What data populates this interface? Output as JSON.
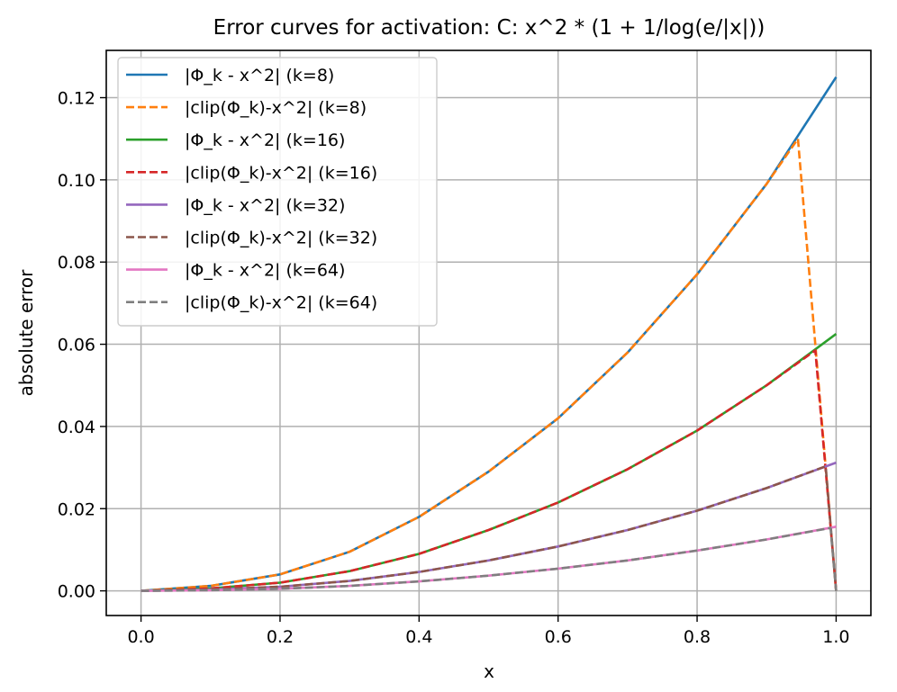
{
  "chart_data": {
    "type": "line",
    "title": "Error curves for activation: C: x^2 * (1 + 1/log(e/|x|))",
    "xlabel": "x",
    "ylabel": "absolute error",
    "xlim": [
      -0.05,
      1.05
    ],
    "ylim": [
      -0.006,
      0.1315
    ],
    "xticks": [
      0.0,
      0.2,
      0.4,
      0.6,
      0.8,
      1.0
    ],
    "yticks": [
      0.0,
      0.02,
      0.04,
      0.06,
      0.08,
      0.1,
      0.12
    ],
    "xtick_labels": [
      "0.0",
      "0.2",
      "0.4",
      "0.6",
      "0.8",
      "1.0"
    ],
    "ytick_labels": [
      "0.00",
      "0.02",
      "0.04",
      "0.06",
      "0.08",
      "0.10",
      "0.12"
    ],
    "grid": true,
    "legend_position": "upper-left",
    "series": [
      {
        "name": "|Φ_k - x^2| (k=8)",
        "color": "#1f77b4",
        "style": "solid",
        "k": 8,
        "clipped": false,
        "x": [
          0.0,
          0.1,
          0.2,
          0.3,
          0.4,
          0.5,
          0.6,
          0.7,
          0.8,
          0.9,
          1.0
        ],
        "y": [
          0.0,
          0.0012,
          0.004,
          0.0095,
          0.018,
          0.029,
          0.042,
          0.058,
          0.077,
          0.099,
          0.125
        ]
      },
      {
        "name": "|clip(Φ_k)-x^2| (k=8)",
        "color": "#ff7f0e",
        "style": "dashed",
        "k": 8,
        "clipped": true,
        "x": [
          0.0,
          0.1,
          0.2,
          0.3,
          0.4,
          0.5,
          0.6,
          0.7,
          0.8,
          0.9,
          0.945,
          1.0
        ],
        "y": [
          0.0,
          0.0012,
          0.004,
          0.0095,
          0.018,
          0.029,
          0.042,
          0.058,
          0.077,
          0.099,
          0.11,
          0.0
        ]
      },
      {
        "name": "|Φ_k - x^2| (k=16)",
        "color": "#2ca02c",
        "style": "solid",
        "k": 16,
        "clipped": false,
        "x": [
          0.0,
          0.1,
          0.2,
          0.3,
          0.4,
          0.5,
          0.6,
          0.7,
          0.8,
          0.9,
          1.0
        ],
        "y": [
          0.0,
          0.0006,
          0.002,
          0.0048,
          0.009,
          0.0148,
          0.0215,
          0.0296,
          0.039,
          0.05,
          0.0625
        ]
      },
      {
        "name": "|clip(Φ_k)-x^2| (k=16)",
        "color": "#d62728",
        "style": "dashed",
        "k": 16,
        "clipped": true,
        "x": [
          0.0,
          0.1,
          0.2,
          0.3,
          0.4,
          0.5,
          0.6,
          0.7,
          0.8,
          0.9,
          0.97,
          1.0
        ],
        "y": [
          0.0,
          0.0006,
          0.002,
          0.0048,
          0.009,
          0.0148,
          0.0215,
          0.0296,
          0.039,
          0.05,
          0.0585,
          0.0
        ]
      },
      {
        "name": "|Φ_k - x^2| (k=32)",
        "color": "#9467bd",
        "style": "solid",
        "k": 32,
        "clipped": false,
        "x": [
          0.0,
          0.1,
          0.2,
          0.3,
          0.4,
          0.5,
          0.6,
          0.7,
          0.8,
          0.9,
          1.0
        ],
        "y": [
          0.0,
          0.0003,
          0.001,
          0.0024,
          0.0046,
          0.0074,
          0.0108,
          0.0148,
          0.0195,
          0.025,
          0.0312
        ]
      },
      {
        "name": "|clip(Φ_k)-x^2| (k=32)",
        "color": "#8c564b",
        "style": "dashed",
        "k": 32,
        "clipped": true,
        "x": [
          0.0,
          0.1,
          0.2,
          0.3,
          0.4,
          0.5,
          0.6,
          0.7,
          0.8,
          0.9,
          0.985,
          1.0
        ],
        "y": [
          0.0,
          0.0003,
          0.001,
          0.0024,
          0.0046,
          0.0074,
          0.0108,
          0.0148,
          0.0195,
          0.025,
          0.0303,
          0.0
        ]
      },
      {
        "name": "|Φ_k - x^2| (k=64)",
        "color": "#e377c2",
        "style": "solid",
        "k": 64,
        "clipped": false,
        "x": [
          0.0,
          0.1,
          0.2,
          0.3,
          0.4,
          0.5,
          0.6,
          0.7,
          0.8,
          0.9,
          1.0
        ],
        "y": [
          0.0,
          0.00015,
          0.0005,
          0.0012,
          0.0023,
          0.0037,
          0.0054,
          0.0074,
          0.0098,
          0.0125,
          0.0156
        ]
      },
      {
        "name": "|clip(Φ_k)-x^2| (k=64)",
        "color": "#7f7f7f",
        "style": "dashed",
        "k": 64,
        "clipped": true,
        "x": [
          0.0,
          0.1,
          0.2,
          0.3,
          0.4,
          0.5,
          0.6,
          0.7,
          0.8,
          0.9,
          0.992,
          1.0
        ],
        "y": [
          0.0,
          0.00015,
          0.0005,
          0.0012,
          0.0023,
          0.0037,
          0.0054,
          0.0074,
          0.0098,
          0.0125,
          0.0153,
          0.0
        ]
      }
    ]
  }
}
